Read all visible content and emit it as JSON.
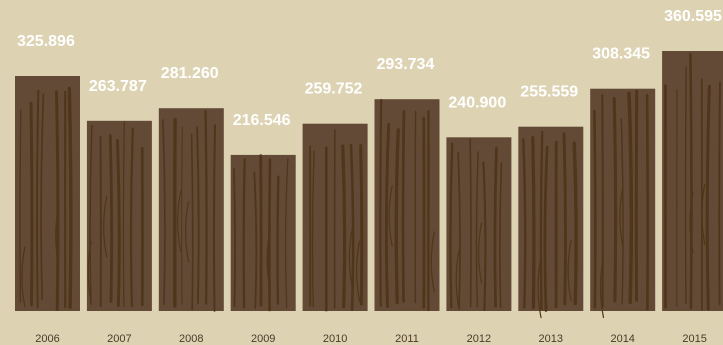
{
  "chart_data": {
    "type": "bar",
    "categories": [
      "2006",
      "2007",
      "2008",
      "2009",
      "2010",
      "2011",
      "2012",
      "2013",
      "2014",
      "2015"
    ],
    "values": [
      325.896,
      263.787,
      281.26,
      216.546,
      259.752,
      293.734,
      240.9,
      255.559,
      308.345,
      360.595
    ],
    "value_labels": [
      "325.896",
      "263.787",
      "281.260",
      "216.546",
      "259.752",
      "293.734",
      "240.900",
      "255.559",
      "308.345",
      "360.595"
    ],
    "title": "",
    "xlabel": "",
    "ylabel": "",
    "colors": {
      "background": "#ddd3b3",
      "bar": "#634a36",
      "grain": "#4f3519",
      "value_label": "#ffffff",
      "tick_label": "#4a3a2a"
    }
  }
}
